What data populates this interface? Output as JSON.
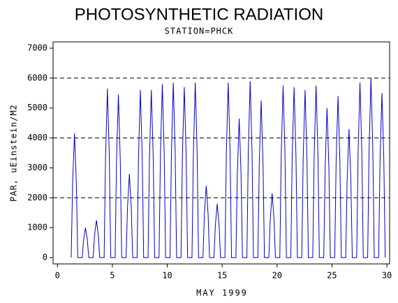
{
  "chart_data": {
    "type": "line",
    "title": "PHOTOSYNTHETIC RADIATION",
    "subtitle": "STATION=PHCK",
    "x_label": "MAY 1999",
    "y_label": "PAR, uEinstein/M2",
    "xlim": [
      -0.4,
      30.25
    ],
    "ylim": [
      -210,
      7210
    ],
    "xticks": [
      0,
      5,
      10,
      15,
      20,
      25,
      30
    ],
    "yticks": [
      0,
      1000,
      2000,
      3000,
      4000,
      5000,
      6000,
      7000
    ],
    "grid_lines": [
      2000,
      4000,
      6000
    ],
    "x": [
      1.25,
      1.38,
      1.55,
      1.72,
      1.85,
      2.25,
      2.38,
      2.55,
      2.72,
      2.85,
      3.25,
      3.38,
      3.55,
      3.72,
      3.85,
      4.25,
      4.38,
      4.55,
      4.72,
      4.85,
      5.25,
      5.38,
      5.55,
      5.72,
      5.85,
      6.25,
      6.38,
      6.55,
      6.72,
      6.85,
      7.25,
      7.38,
      7.55,
      7.72,
      7.85,
      8.25,
      8.38,
      8.55,
      8.72,
      8.85,
      9.25,
      9.38,
      9.55,
      9.72,
      9.85,
      10.25,
      10.38,
      10.55,
      10.72,
      10.85,
      11.25,
      11.38,
      11.55,
      11.72,
      11.85,
      12.25,
      12.38,
      12.55,
      12.72,
      12.85,
      13.25,
      13.38,
      13.55,
      13.72,
      13.85,
      14.25,
      14.38,
      14.55,
      14.72,
      14.85,
      15.25,
      15.38,
      15.55,
      15.72,
      15.85,
      16.25,
      16.38,
      16.55,
      16.72,
      16.85,
      17.25,
      17.38,
      17.55,
      17.72,
      17.85,
      18.25,
      18.38,
      18.55,
      18.72,
      18.85,
      19.25,
      19.38,
      19.55,
      19.72,
      19.85,
      20.25,
      20.38,
      20.55,
      20.72,
      20.85,
      21.25,
      21.38,
      21.55,
      21.72,
      21.85,
      22.25,
      22.38,
      22.55,
      22.72,
      22.85,
      23.25,
      23.38,
      23.55,
      23.72,
      23.85,
      24.25,
      24.38,
      24.55,
      24.72,
      24.85,
      25.25,
      25.38,
      25.55,
      25.72,
      25.85,
      26.25,
      26.38,
      26.55,
      26.72,
      26.85,
      27.25,
      27.38,
      27.55,
      27.72,
      27.85,
      28.25,
      28.38,
      28.55,
      28.72,
      28.85,
      29.25,
      29.38,
      29.55,
      29.72,
      29.85
    ],
    "series": [
      {
        "name": "PAR",
        "color": "#0000cc",
        "values": [
          0,
          2490,
          4150,
          2490,
          0,
          0,
          600,
          1000,
          600,
          0,
          0,
          750,
          1250,
          750,
          0,
          0,
          3390,
          5650,
          3390,
          0,
          0,
          3270,
          5450,
          3270,
          0,
          0,
          1680,
          2800,
          1680,
          0,
          0,
          3360,
          5600,
          3360,
          0,
          0,
          3360,
          5600,
          3360,
          0,
          0,
          3480,
          5800,
          3480,
          0,
          0,
          3510,
          5850,
          3510,
          0,
          0,
          3420,
          5700,
          3420,
          0,
          0,
          3510,
          5850,
          3510,
          0,
          0,
          1440,
          2400,
          1440,
          0,
          0,
          1080,
          1800,
          1080,
          0,
          0,
          3510,
          5850,
          3510,
          0,
          0,
          2790,
          4650,
          2790,
          0,
          0,
          3540,
          5900,
          3540,
          0,
          0,
          3150,
          5250,
          3150,
          0,
          0,
          1290,
          2150,
          1290,
          0,
          0,
          3450,
          5750,
          3450,
          0,
          0,
          3420,
          5700,
          3420,
          0,
          0,
          3360,
          5600,
          3360,
          0,
          0,
          3450,
          5750,
          3450,
          0,
          0,
          3000,
          5000,
          3000,
          0,
          0,
          3240,
          5400,
          3240,
          0,
          0,
          2580,
          4300,
          2580,
          0,
          0,
          3510,
          5850,
          3510,
          0,
          0,
          3600,
          6000,
          3600,
          0,
          0,
          3300,
          5500,
          3300,
          0
        ]
      }
    ]
  }
}
